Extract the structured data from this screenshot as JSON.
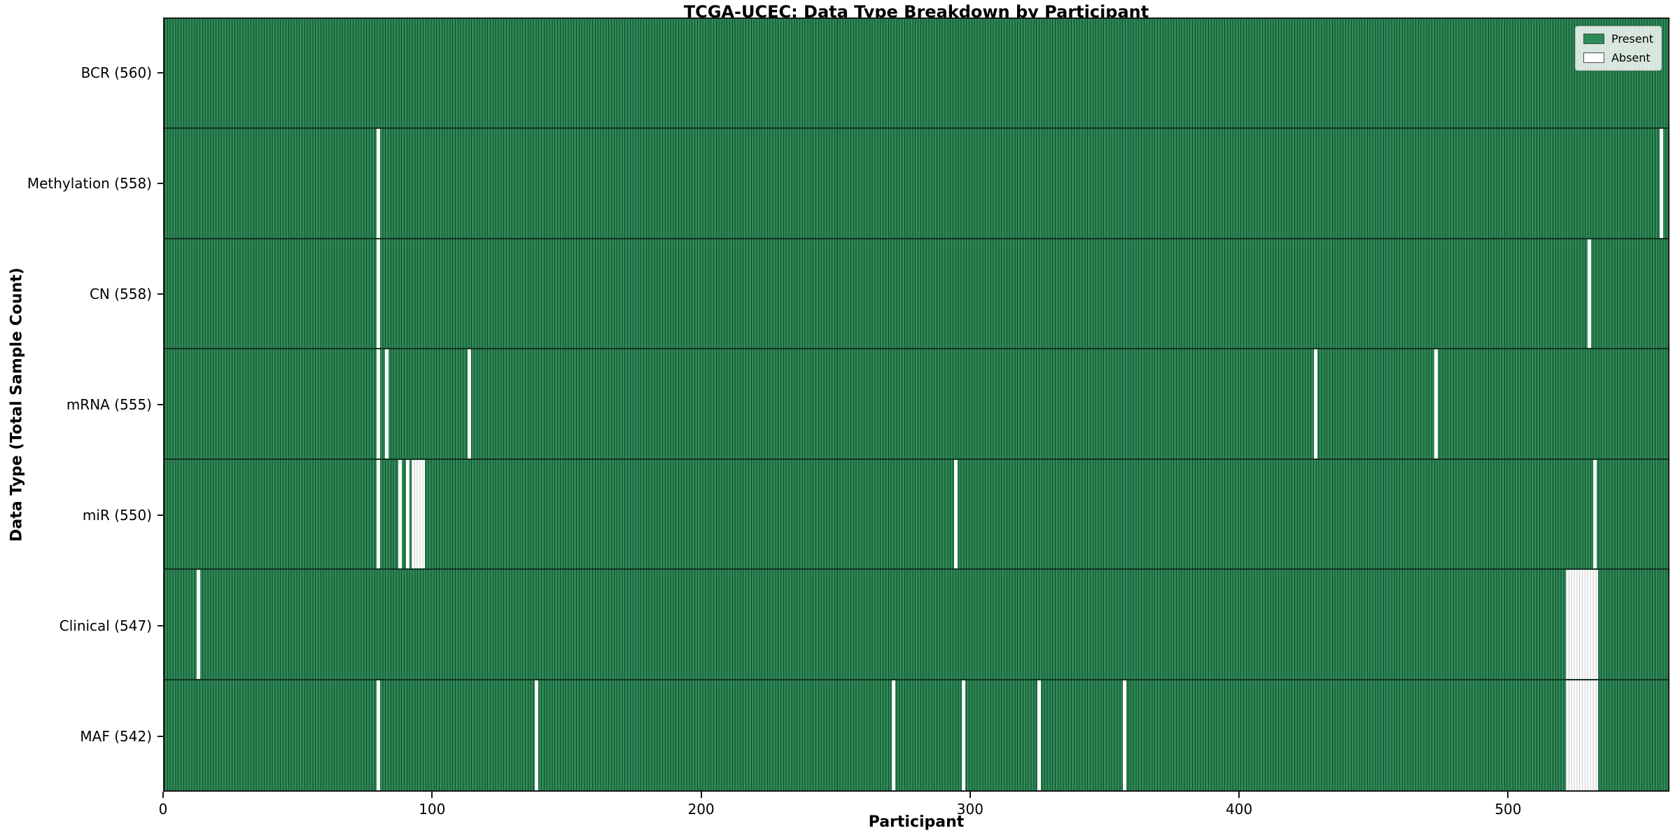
{
  "colors": {
    "present": "#2e8b57",
    "absent": "#ffffff",
    "cell_edge": "#14462b",
    "absent_edge": "#c8c8c8",
    "row_sep": "#123322",
    "axis": "#000000"
  },
  "chart_data": {
    "type": "heatmap",
    "title": "TCGA-UCEC: Data Type Breakdown by Participant",
    "xlabel": "Participant",
    "ylabel": "Data Type (Total Sample Count)",
    "x_range": [
      0,
      560
    ],
    "x_ticks": [
      0,
      100,
      200,
      300,
      400,
      500
    ],
    "grid": false,
    "legend_position": "upper right",
    "legend": [
      {
        "label": "Present",
        "color": "#2e8b57"
      },
      {
        "label": "Absent",
        "color": "#ffffff"
      }
    ],
    "rows": [
      {
        "name": "BCR",
        "total": 560,
        "label": "BCR (560)",
        "absent": []
      },
      {
        "name": "Methylation",
        "total": 558,
        "label": "Methylation (558)",
        "absent": [
          79,
          557
        ]
      },
      {
        "name": "CN",
        "total": 558,
        "label": "CN (558)",
        "absent": [
          79,
          530
        ]
      },
      {
        "name": "mRNA",
        "total": 555,
        "label": "mRNA (555)",
        "absent": [
          79,
          82,
          113,
          428,
          473
        ]
      },
      {
        "name": "miR",
        "total": 550,
        "label": "miR (550)",
        "absent": [
          79,
          87,
          90,
          92,
          93,
          94,
          95,
          96,
          294,
          532
        ]
      },
      {
        "name": "Clinical",
        "total": 547,
        "label": "Clinical (547)",
        "absent": [
          12,
          522,
          523,
          524,
          525,
          526,
          527,
          528,
          529,
          530,
          531,
          532,
          533
        ]
      },
      {
        "name": "MAF",
        "total": 542,
        "label": "MAF (542)",
        "absent": [
          79,
          138,
          271,
          297,
          325,
          357,
          522,
          523,
          524,
          525,
          526,
          527,
          528,
          529,
          530,
          531,
          532,
          533
        ]
      }
    ]
  }
}
